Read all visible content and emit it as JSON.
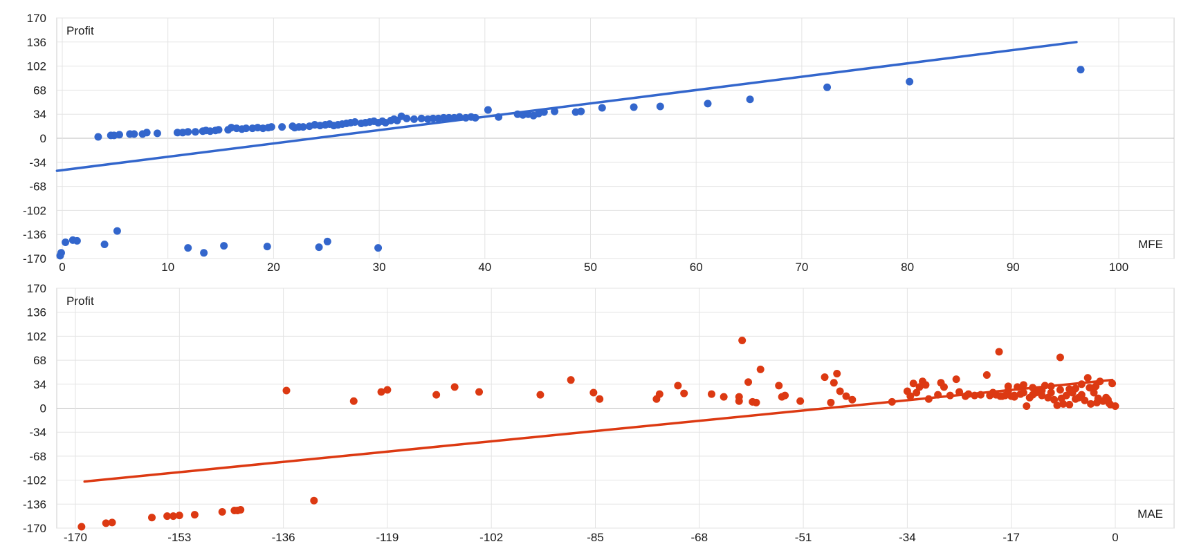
{
  "chart_data": [
    {
      "type": "scatter",
      "ylabel": "Profit",
      "xlabel": "MFE",
      "xlim": [
        0,
        100
      ],
      "ylim": [
        -170,
        170
      ],
      "x_ticks": [
        "0",
        "10",
        "20",
        "30",
        "40",
        "50",
        "60",
        "70",
        "80",
        "90",
        "100"
      ],
      "y_ticks": [
        "170",
        "136",
        "102",
        "68",
        "34",
        "0",
        "-34",
        "-68",
        "-102",
        "-136",
        "-170"
      ],
      "grid": true,
      "color": "#3366cc",
      "trendline": {
        "x": [
          -0.5,
          96
        ],
        "y": [
          -46,
          136
        ]
      },
      "points": [
        [
          3.4,
          2
        ],
        [
          4.6,
          4
        ],
        [
          4.9,
          4
        ],
        [
          5.4,
          5
        ],
        [
          6.4,
          6
        ],
        [
          6.8,
          6
        ],
        [
          7.6,
          6
        ],
        [
          8,
          8
        ],
        [
          9,
          7
        ],
        [
          10.9,
          8
        ],
        [
          11.4,
          8
        ],
        [
          11.9,
          9
        ],
        [
          12.6,
          9
        ],
        [
          13.3,
          10
        ],
        [
          13.6,
          11
        ],
        [
          14,
          10
        ],
        [
          14.5,
          11
        ],
        [
          14.8,
          12
        ],
        [
          15.7,
          12
        ],
        [
          16,
          15
        ],
        [
          16.5,
          14
        ],
        [
          17,
          13
        ],
        [
          17.4,
          14
        ],
        [
          18,
          14
        ],
        [
          18.5,
          15
        ],
        [
          19,
          14
        ],
        [
          19.5,
          15
        ],
        [
          19.8,
          16
        ],
        [
          20.8,
          16
        ],
        [
          21.8,
          17
        ],
        [
          22,
          15
        ],
        [
          22.4,
          16
        ],
        [
          22.8,
          16
        ],
        [
          23.4,
          17
        ],
        [
          23.9,
          19
        ],
        [
          24.4,
          18
        ],
        [
          24.9,
          19
        ],
        [
          25.3,
          20
        ],
        [
          25.7,
          18
        ],
        [
          26.1,
          19
        ],
        [
          26.5,
          20
        ],
        [
          26.9,
          21
        ],
        [
          27.3,
          22
        ],
        [
          27.7,
          23
        ],
        [
          28.3,
          21
        ],
        [
          28.7,
          22
        ],
        [
          29.1,
          23
        ],
        [
          29.5,
          24
        ],
        [
          29.9,
          22
        ],
        [
          30.3,
          24
        ],
        [
          30.6,
          22
        ],
        [
          31.1,
          25
        ],
        [
          31.4,
          27
        ],
        [
          31.7,
          25
        ],
        [
          32.1,
          31
        ],
        [
          32.6,
          28
        ],
        [
          33.3,
          27
        ],
        [
          34,
          28
        ],
        [
          34.6,
          27
        ],
        [
          35.1,
          28
        ],
        [
          35.6,
          28
        ],
        [
          36.1,
          29
        ],
        [
          36.6,
          29
        ],
        [
          37.1,
          29
        ],
        [
          37.6,
          30
        ],
        [
          38.2,
          29
        ],
        [
          38.7,
          30
        ],
        [
          39.1,
          29
        ],
        [
          40.3,
          40
        ],
        [
          41.3,
          30
        ],
        [
          43.1,
          34
        ],
        [
          43.6,
          33
        ],
        [
          44.1,
          34
        ],
        [
          44.6,
          32
        ],
        [
          45.1,
          35
        ],
        [
          45.6,
          37
        ],
        [
          46.6,
          38
        ],
        [
          48.6,
          37
        ],
        [
          49.1,
          38
        ],
        [
          51.1,
          43
        ],
        [
          54.1,
          44
        ],
        [
          56.6,
          45
        ],
        [
          61.1,
          49
        ],
        [
          65.1,
          55
        ],
        [
          72.4,
          72
        ],
        [
          80.2,
          80
        ],
        [
          96.4,
          97
        ],
        [
          -0.2,
          -166
        ],
        [
          -0.1,
          -162
        ],
        [
          0.3,
          -147
        ],
        [
          1,
          -144
        ],
        [
          1.4,
          -145
        ],
        [
          4,
          -150
        ],
        [
          5.2,
          -131
        ],
        [
          11.9,
          -155
        ],
        [
          13.4,
          -162
        ],
        [
          15.3,
          -152
        ],
        [
          19.4,
          -153
        ],
        [
          24.3,
          -154
        ],
        [
          25.1,
          -146
        ],
        [
          29.9,
          -155
        ]
      ]
    },
    {
      "type": "scatter",
      "ylabel": "Profit",
      "xlabel": "MAE",
      "xlim": [
        -170,
        0
      ],
      "ylim": [
        -170,
        170
      ],
      "x_ticks": [
        "-170",
        "-153",
        "-136",
        "-119",
        "-102",
        "-85",
        "-68",
        "-51",
        "-34",
        "-17",
        "0"
      ],
      "y_ticks": [
        "170",
        "136",
        "102",
        "68",
        "34",
        "0",
        "-34",
        "-68",
        "-102",
        "-136",
        "-170"
      ],
      "grid": true,
      "color": "#dc3912",
      "trendline": {
        "x": [
          -168.5,
          -0.5
        ],
        "y": [
          -104,
          40
        ]
      },
      "points": [
        [
          -169,
          -168
        ],
        [
          -165,
          -163
        ],
        [
          -164,
          -162
        ],
        [
          -157.5,
          -155
        ],
        [
          -155,
          -153
        ],
        [
          -154,
          -153
        ],
        [
          -153,
          -152
        ],
        [
          -150.5,
          -151
        ],
        [
          -146,
          -147
        ],
        [
          -144,
          -145
        ],
        [
          -143.5,
          -145
        ],
        [
          -143,
          -144
        ],
        [
          -135.5,
          25
        ],
        [
          -131,
          -131
        ],
        [
          -124.5,
          10
        ],
        [
          -120,
          23
        ],
        [
          -119,
          26
        ],
        [
          -111,
          19
        ],
        [
          -108,
          30
        ],
        [
          -104,
          23
        ],
        [
          -94,
          19
        ],
        [
          -89,
          40
        ],
        [
          -85.3,
          22
        ],
        [
          -84.3,
          13
        ],
        [
          -75,
          13
        ],
        [
          -74.5,
          20
        ],
        [
          -71.5,
          32
        ],
        [
          -70.5,
          21
        ],
        [
          -66,
          20
        ],
        [
          -64,
          16
        ],
        [
          -61.5,
          16
        ],
        [
          -61.5,
          10
        ],
        [
          -61,
          96
        ],
        [
          -60,
          37
        ],
        [
          -59.3,
          9
        ],
        [
          -58.7,
          8
        ],
        [
          -58,
          55
        ],
        [
          -55,
          32
        ],
        [
          -54.5,
          16
        ],
        [
          -54,
          18
        ],
        [
          -51.5,
          10
        ],
        [
          -47.5,
          44
        ],
        [
          -46.5,
          8
        ],
        [
          -46,
          36
        ],
        [
          -45.5,
          49
        ],
        [
          -45,
          24
        ],
        [
          -44,
          17
        ],
        [
          -43,
          12
        ],
        [
          -36.5,
          9
        ],
        [
          -34,
          24
        ],
        [
          -33.5,
          17
        ],
        [
          -33,
          35
        ],
        [
          -32.5,
          22
        ],
        [
          -32,
          30
        ],
        [
          -31.5,
          38
        ],
        [
          -31,
          33
        ],
        [
          -30.5,
          13
        ],
        [
          -29,
          19
        ],
        [
          -28.5,
          36
        ],
        [
          -27,
          18
        ],
        [
          -26,
          41
        ],
        [
          -24.5,
          17
        ],
        [
          -24,
          20
        ],
        [
          -23,
          18
        ],
        [
          -21,
          47
        ],
        [
          -20.5,
          18
        ],
        [
          -20,
          22
        ],
        [
          -19.5,
          19
        ],
        [
          -19,
          80
        ],
        [
          -18.5,
          17
        ],
        [
          -18,
          18
        ],
        [
          -17.5,
          25
        ],
        [
          -17,
          17
        ],
        [
          -16.5,
          18
        ],
        [
          -16,
          30
        ],
        [
          -15.5,
          20
        ],
        [
          -15,
          22
        ],
        [
          -14.5,
          3
        ],
        [
          -14,
          15
        ],
        [
          -13.5,
          19
        ],
        [
          -13,
          22
        ],
        [
          -12.5,
          25
        ],
        [
          -12,
          18
        ],
        [
          -11.5,
          32
        ],
        [
          -11,
          15
        ],
        [
          -10.5,
          22
        ],
        [
          -10,
          12
        ],
        [
          -9.5,
          4
        ],
        [
          -9,
          26
        ],
        [
          -9,
          72
        ],
        [
          -8.5,
          6
        ],
        [
          -8,
          18
        ],
        [
          -7.5,
          5
        ],
        [
          -7,
          22
        ],
        [
          -6.5,
          28
        ],
        [
          -6,
          15
        ],
        [
          -5.5,
          19
        ],
        [
          -5,
          11
        ],
        [
          -4.5,
          43
        ],
        [
          -4,
          6
        ],
        [
          -3.5,
          22
        ],
        [
          -3,
          8
        ],
        [
          -2.5,
          38
        ],
        [
          -2,
          10
        ],
        [
          -1.5,
          15
        ],
        [
          -1,
          7
        ],
        [
          -0.5,
          35
        ],
        [
          0,
          3
        ],
        [
          -0.8,
          5
        ],
        [
          -1.2,
          12
        ],
        [
          -2.8,
          14
        ],
        [
          -3.2,
          31
        ],
        [
          -4.2,
          29
        ],
        [
          -5.5,
          34
        ],
        [
          -6.5,
          13
        ],
        [
          -7.5,
          27
        ],
        [
          -8.8,
          14
        ],
        [
          -10.5,
          31
        ],
        [
          -12,
          25
        ],
        [
          -13.5,
          29
        ],
        [
          -15,
          33
        ],
        [
          -16.5,
          16
        ],
        [
          -17.5,
          31
        ],
        [
          -18.8,
          17
        ],
        [
          -22,
          19
        ],
        [
          -25.5,
          23
        ],
        [
          -28,
          30
        ]
      ]
    }
  ]
}
